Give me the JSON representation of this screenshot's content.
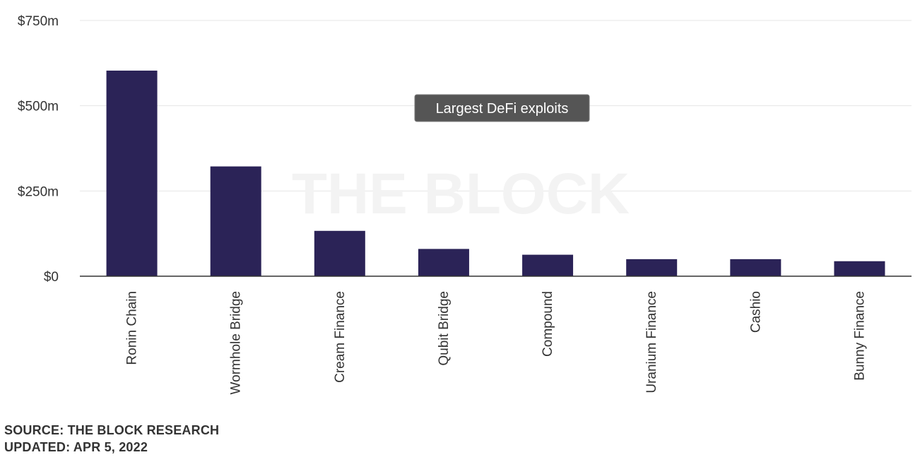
{
  "chart_data": {
    "type": "bar",
    "title": "",
    "xlabel": "",
    "ylabel": "",
    "categories": [
      "Ronin Chain",
      "Wormhole Bridge",
      "Cream Finance",
      "Qubit Bridge",
      "Compound",
      "Uranium Finance",
      "Cashio",
      "Bunny Finance"
    ],
    "values": [
      603,
      322,
      133,
      80,
      63,
      50,
      50,
      44
    ],
    "units": "USD millions",
    "ylim": [
      0,
      750
    ],
    "yticks": [
      0,
      250,
      500,
      750
    ],
    "ytick_labels": [
      "$0",
      "$250m",
      "$500m",
      "$750m"
    ],
    "grid": true,
    "bar_color": "#2b2357",
    "tooltip": "Largest DeFi exploits",
    "watermark": "THE BLOCK"
  },
  "footer": {
    "source": "SOURCE: THE BLOCK RESEARCH",
    "updated": "UPDATED: APR 5, 2022"
  }
}
